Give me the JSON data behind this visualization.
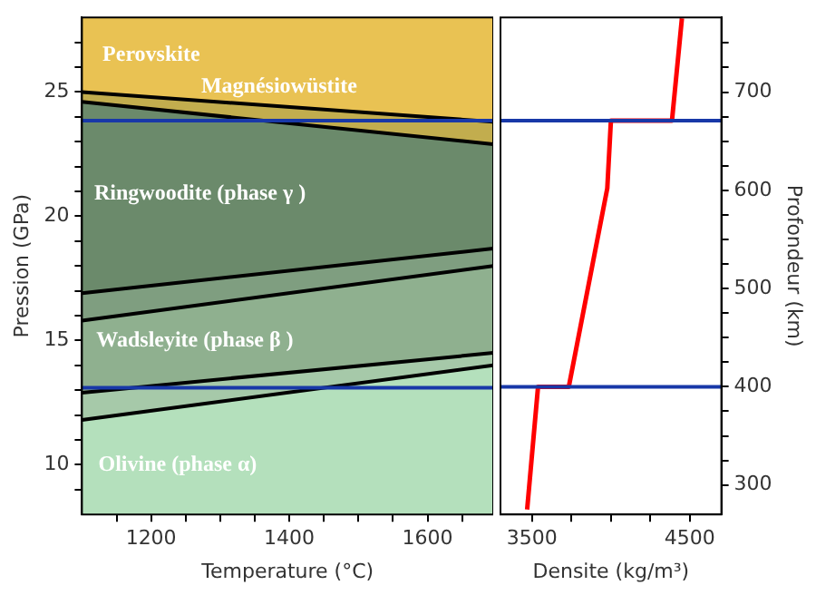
{
  "chart_data": [
    {
      "type": "area",
      "xlabel": "Temperature (°C)",
      "ylabel": "Pression (GPa)",
      "x": [
        1100,
        1695
      ],
      "xlim": [
        1100,
        1695
      ],
      "xticks": [
        {
          "value": 1150,
          "label": null
        },
        1200,
        {
          "value": 1250,
          "label": null
        },
        {
          "value": 1300,
          "label": null
        },
        {
          "value": 1350,
          "label": null
        },
        1400,
        {
          "value": 1450,
          "label": null
        },
        {
          "value": 1500,
          "label": null
        },
        {
          "value": 1550,
          "label": null
        },
        1600,
        {
          "value": 1650,
          "label": null
        }
      ],
      "ylim": [
        8,
        28
      ],
      "yticks": [
        {
          "value": 9,
          "label": null
        },
        10,
        {
          "value": 11,
          "label": null
        },
        {
          "value": 12,
          "label": null
        },
        {
          "value": 13,
          "label": null
        },
        {
          "value": 14,
          "label": null
        },
        15,
        {
          "value": 16,
          "label": null
        },
        {
          "value": 17,
          "label": null
        },
        {
          "value": 18,
          "label": null
        },
        {
          "value": 19,
          "label": null
        },
        20,
        {
          "value": 21,
          "label": null
        },
        {
          "value": 22,
          "label": null
        },
        {
          "value": 23,
          "label": null
        },
        {
          "value": 24,
          "label": null
        },
        25,
        {
          "value": 26,
          "label": null
        },
        {
          "value": 27,
          "label": null
        }
      ],
      "series": [
        {
          "color": "#c2ad4e",
          "values": [
            25.0,
            23.8
          ]
        },
        {
          "color": "#6b8a6b",
          "values": [
            24.6,
            22.9
          ]
        },
        {
          "color": "#7f9e80",
          "values": [
            16.9,
            18.7
          ]
        },
        {
          "color": "#8fb08f",
          "values": [
            15.8,
            18.0
          ]
        },
        {
          "color": "#a6c9a9",
          "values": [
            12.9,
            14.5
          ]
        },
        {
          "color": "#b4e0bc",
          "values": [
            11.8,
            14.0
          ]
        }
      ],
      "bands": [
        {
          "axis": "y",
          "from": 23.8,
          "to": 28,
          "color": "#e9c253"
        }
      ],
      "ref_lines": [
        {
          "axis": "y",
          "value": 23.85,
          "color": "#1838a8"
        },
        {
          "axis": "y",
          "value": 13.1,
          "color": "#1838a8"
        }
      ],
      "annotations": [
        "Perovskite",
        "Magnésiowüstite",
        "Ringwoodite (phase γ )",
        "Wadsleyite (phase β )",
        "Olivine (phase α)"
      ]
    },
    {
      "type": "line",
      "xlabel": "Densite (kg/m³)",
      "y2label": "Profondeur (km)",
      "xlim": [
        3300,
        4700
      ],
      "xticks": [
        3500,
        {
          "value": 3750,
          "label": null
        },
        {
          "value": 4000,
          "label": null
        },
        {
          "value": 4250,
          "label": null
        },
        4500
      ],
      "y2lim": [
        270,
        776
      ],
      "y2ticks": [
        300,
        {
          "value": 325,
          "label": null
        },
        {
          "value": 350,
          "label": null
        },
        {
          "value": 375,
          "label": null
        },
        400,
        {
          "value": 425,
          "label": null
        },
        {
          "value": 450,
          "label": null
        },
        {
          "value": 475,
          "label": null
        },
        500,
        {
          "value": 525,
          "label": null
        },
        {
          "value": 550,
          "label": null
        },
        {
          "value": 575,
          "label": null
        },
        600,
        {
          "value": 625,
          "label": null
        },
        {
          "value": 650,
          "label": null
        },
        {
          "value": 675,
          "label": null
        },
        700,
        {
          "value": 725,
          "label": null
        },
        {
          "value": 750,
          "label": null
        }
      ],
      "series": [
        {
          "axis": "y2",
          "color": "#ff0000",
          "x": [
            3469,
            3538,
            3733,
            3977,
            4000,
            4387,
            4450
          ],
          "values": [
            275,
            400,
            400,
            602,
            671,
            671,
            775
          ]
        }
      ],
      "ref_lines": [
        {
          "axis": "y2",
          "value": 671,
          "color": "#1838a8"
        },
        {
          "axis": "y2",
          "value": 400,
          "color": "#1838a8"
        }
      ]
    }
  ]
}
